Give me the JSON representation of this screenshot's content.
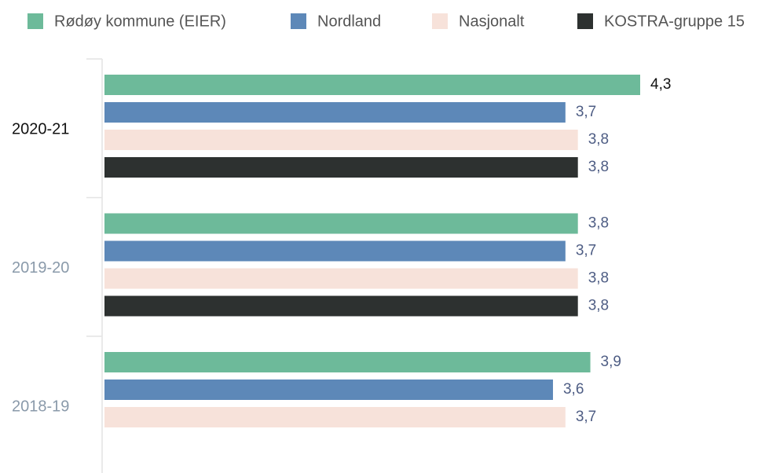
{
  "chart_data": {
    "type": "hbar",
    "categories": [
      "2020-21",
      "2019-20",
      "2018-19"
    ],
    "series": [
      {
        "name": "Rødøy kommune (EIER)",
        "color": "#6dba9a",
        "values": [
          4.3,
          3.8,
          3.9
        ],
        "value_labels": [
          "4,3",
          "3,8",
          "3,9"
        ]
      },
      {
        "name": "Nordland",
        "color": "#5d88b8",
        "values": [
          3.7,
          3.7,
          3.6
        ],
        "value_labels": [
          "3,7",
          "3,7",
          "3,6"
        ]
      },
      {
        "name": "Nasjonalt",
        "color": "#f7e2da",
        "values": [
          3.8,
          3.8,
          3.7
        ],
        "value_labels": [
          "3,8",
          "3,8",
          "3,7"
        ]
      },
      {
        "name": "KOSTRA-gruppe 15",
        "color": "#2d3130",
        "values": [
          3.8,
          3.8,
          null
        ],
        "value_labels": [
          "3,8",
          "3,8",
          null
        ]
      }
    ],
    "legend": "top"
  }
}
